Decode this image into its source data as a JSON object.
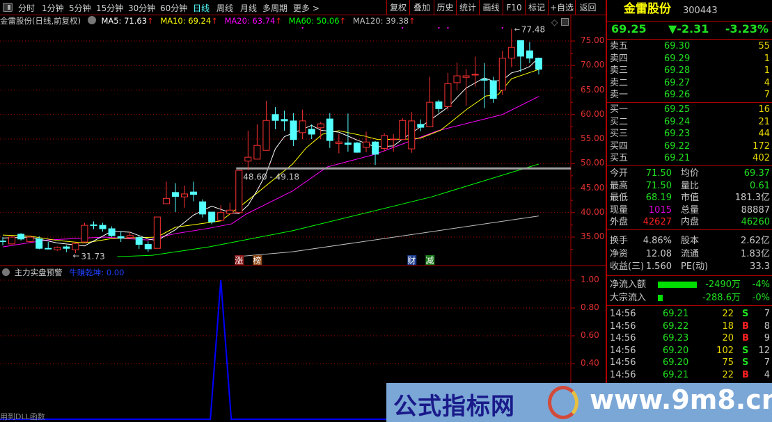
{
  "toolbar": {
    "periods": [
      "分时",
      "1分钟",
      "5分钟",
      "15分钟",
      "30分钟",
      "60分钟",
      "日线",
      "周线",
      "月线",
      "多周期",
      "更多 >"
    ],
    "active": "日线",
    "buttons": [
      "复权",
      "叠加",
      "历史",
      "统计",
      "画线",
      "F10",
      "标记",
      "+自选",
      "返回"
    ]
  },
  "info": {
    "title": "金雷股份(日线,前复权)",
    "ma5": "MA5: 71.63",
    "ma10": "MA10: 69.24",
    "ma20": "MA20: 63.74",
    "ma60": "MA60: 50.06",
    "ma120": "MA120: 39.38",
    "arrow": "↑"
  },
  "colors": {
    "up": "#ff3232",
    "down": "#54ffff",
    "ma5": "#ffffff",
    "ma10": "#ffff00",
    "ma20": "#ff00ff",
    "ma60": "#00ff00",
    "ma120": "#c0c0c0",
    "grid": "#b00000",
    "indicator": "#0000ff"
  },
  "chart_data": {
    "type": "candlestick",
    "ylim": [
      30.5,
      78
    ],
    "yticks": [
      "75.00",
      "70.00",
      "65.00",
      "60.00",
      "55.00",
      "50.00",
      "45.00",
      "40.00",
      "35.00"
    ],
    "ohlc": [
      [
        34.2,
        35,
        33.3,
        34.1
      ],
      [
        33.6,
        35.2,
        33.5,
        35.0
      ],
      [
        35.6,
        35.8,
        34.3,
        34.6
      ],
      [
        34.1,
        35.3,
        33.9,
        35.0
      ],
      [
        34.6,
        35.2,
        32.5,
        32.7
      ],
      [
        32.7,
        34.0,
        32.5,
        32.6
      ],
      [
        32.4,
        33.1,
        32.2,
        32.9
      ],
      [
        33.0,
        33.3,
        31.9,
        32.7
      ],
      [
        32.4,
        33.9,
        31.73,
        33.7
      ],
      [
        34.0,
        37.9,
        33.8,
        37.4
      ],
      [
        37.5,
        38.2,
        36.6,
        37.4
      ],
      [
        37.4,
        37.9,
        36.1,
        36.7
      ],
      [
        36.7,
        37.2,
        35.0,
        35.3
      ],
      [
        35.1,
        36.2,
        34.0,
        34.8
      ],
      [
        34.9,
        36.0,
        34.8,
        35.3
      ],
      [
        34.9,
        35.3,
        32.6,
        33.5
      ],
      [
        33.5,
        34.1,
        32.0,
        32.6
      ],
      [
        32.7,
        39.1,
        32.7,
        39.1
      ],
      [
        41.8,
        46.3,
        41.8,
        42.9
      ],
      [
        44.1,
        46.0,
        40.1,
        43.3
      ],
      [
        43.2,
        45.5,
        41.0,
        43.8
      ],
      [
        44.2,
        46.3,
        42.3,
        43.7
      ],
      [
        42.2,
        42.7,
        39.0,
        39.7
      ],
      [
        40.1,
        40.1,
        37.6,
        38.1
      ],
      [
        38.4,
        41.5,
        38.4,
        40.0
      ],
      [
        39.8,
        42.0,
        39.6,
        40.5
      ],
      [
        40.0,
        48.6,
        40.0,
        48.6
      ],
      [
        50.5,
        56.7,
        48.6,
        51.3
      ],
      [
        50.9,
        58.0,
        50.9,
        53.7
      ],
      [
        52.7,
        62.8,
        52.7,
        58.8
      ],
      [
        60.0,
        61.5,
        57.0,
        58.8
      ],
      [
        59.0,
        60.8,
        56.7,
        58.7
      ],
      [
        58.7,
        60.3,
        53.6,
        54.9
      ],
      [
        56.3,
        61.0,
        55.0,
        58.7
      ],
      [
        57.0,
        58.0,
        55.0,
        56.0
      ],
      [
        57.3,
        58.5,
        55.0,
        58.1
      ],
      [
        59.1,
        60.3,
        53.2,
        54.7
      ],
      [
        54.1,
        56.0,
        52.1,
        54.4
      ],
      [
        54.2,
        60.2,
        52.4,
        53.9
      ],
      [
        54.2,
        54.4,
        52.2,
        52.3
      ],
      [
        53.3,
        56.5,
        52.3,
        54.4
      ],
      [
        54.4,
        54.6,
        49.7,
        51.9
      ],
      [
        53.1,
        56.2,
        52.5,
        55.7
      ],
      [
        54.9,
        56.0,
        52.4,
        55.0
      ],
      [
        54.9,
        59.3,
        54.9,
        58.8
      ],
      [
        53.0,
        60.5,
        52.2,
        58.7
      ],
      [
        58.0,
        59.0,
        56.6,
        57.4
      ],
      [
        57.5,
        67.7,
        57.5,
        62.5
      ],
      [
        62.6,
        63.0,
        60.4,
        61.2
      ],
      [
        61.6,
        68.5,
        60.8,
        66.3
      ],
      [
        66.5,
        70.6,
        64.9,
        67.9
      ],
      [
        67.6,
        69.3,
        61.8,
        67.9
      ],
      [
        68.2,
        71.8,
        65.7,
        68.2
      ],
      [
        67.2,
        70.5,
        61.3,
        67.0
      ],
      [
        66.9,
        67.7,
        62.4,
        63.3
      ],
      [
        65.0,
        73.0,
        64.0,
        71.5
      ],
      [
        71.5,
        77.48,
        69.7,
        73.7
      ],
      [
        75.1,
        75.1,
        68.7,
        71.9
      ],
      [
        73.0,
        74.8,
        70.5,
        71.5
      ],
      [
        71.5,
        71.5,
        68.19,
        69.25
      ]
    ],
    "ma5": [
      [
        0,
        34.8
      ],
      [
        3,
        35.0
      ],
      [
        6,
        33.8
      ],
      [
        9,
        33.2
      ],
      [
        12,
        36.2
      ],
      [
        14,
        36.0
      ],
      [
        16,
        34.6
      ],
      [
        17,
        34.3
      ],
      [
        19,
        36.5
      ],
      [
        21,
        39.5
      ],
      [
        23,
        41.3
      ],
      [
        25,
        40.0
      ],
      [
        26,
        39.8
      ],
      [
        27,
        41.5
      ],
      [
        28,
        44.5
      ],
      [
        29,
        48
      ],
      [
        30,
        53
      ],
      [
        31,
        55.5
      ],
      [
        33,
        57.0
      ],
      [
        34,
        57.8
      ],
      [
        35,
        56.8
      ],
      [
        37,
        56.4
      ],
      [
        39,
        54.8
      ],
      [
        41,
        53.4
      ],
      [
        43,
        53.6
      ],
      [
        44,
        55.0
      ],
      [
        46,
        57.5
      ],
      [
        47,
        58.8
      ],
      [
        49,
        61.5
      ],
      [
        50,
        63.5
      ],
      [
        51,
        65.4
      ],
      [
        53,
        67.5
      ],
      [
        54,
        66.8
      ],
      [
        55,
        67.0
      ],
      [
        56,
        68.5
      ],
      [
        57,
        69.0
      ],
      [
        58,
        69.8
      ],
      [
        59,
        71.6
      ]
    ],
    "ma10": [
      [
        0,
        35.4
      ],
      [
        3,
        35.2
      ],
      [
        6,
        34.3
      ],
      [
        9,
        33.8
      ],
      [
        12,
        34.7
      ],
      [
        17,
        35.0
      ],
      [
        19,
        37.0
      ],
      [
        24,
        38.3
      ],
      [
        26.5,
        41.8
      ],
      [
        28,
        44
      ],
      [
        31.9,
        49.9
      ],
      [
        33.4,
        53.2
      ],
      [
        35.2,
        56
      ],
      [
        37,
        56.7
      ],
      [
        39.6,
        55.7
      ],
      [
        41.3,
        54.9
      ],
      [
        44.8,
        55
      ],
      [
        46,
        55.2
      ],
      [
        48.2,
        56.8
      ],
      [
        51.1,
        61.1
      ],
      [
        53.2,
        63.8
      ],
      [
        54.5,
        64
      ],
      [
        56,
        67.3
      ],
      [
        59,
        69.2
      ]
    ],
    "ma20": [
      [
        0,
        33.0
      ],
      [
        4.8,
        34.4
      ],
      [
        11.2,
        35.0
      ],
      [
        16,
        34.4
      ],
      [
        19,
        35.7
      ],
      [
        22.7,
        36.8
      ],
      [
        25.2,
        37.7
      ],
      [
        26.8,
        39.7
      ],
      [
        31.9,
        44.4
      ],
      [
        35.7,
        49.3
      ],
      [
        41,
        51.9
      ],
      [
        47.9,
        56.7
      ],
      [
        55,
        60
      ],
      [
        59,
        63.7
      ]
    ],
    "ma60": [
      [
        12.6,
        31.0
      ],
      [
        16.5,
        31.3
      ],
      [
        22.7,
        33.0
      ],
      [
        31.9,
        36.3
      ],
      [
        47.2,
        43.2
      ],
      [
        59,
        49.9
      ]
    ],
    "ma120": [
      [
        25.7,
        31.0
      ],
      [
        31.9,
        32.0
      ],
      [
        47.2,
        36.1
      ],
      [
        59,
        39.3
      ]
    ],
    "high_label": "77.48",
    "low_label": "31.73",
    "range_label": "48.60 - 49.18",
    "range_level": 49.0,
    "signal_dots": [
      33,
      44,
      48,
      49,
      55
    ],
    "events": [
      {
        "i": 26,
        "text": "涨",
        "bg": "#8b1a1a",
        "color": "#ffffff"
      },
      {
        "i": 28,
        "text": "榜",
        "bg": "#8b4513",
        "color": "#ffffff"
      },
      {
        "i": 45,
        "text": "财",
        "bg": "#1a3a8b",
        "color": "#ffffff"
      },
      {
        "i": 47,
        "text": "减",
        "bg": "#1a7a1a",
        "color": "#ffffff"
      }
    ],
    "indicator": {
      "name": "主力实盘预警",
      "series_label": "牛赚乾坤: 0.00",
      "ylim": [
        0,
        1
      ],
      "yticks": [
        "1.00",
        "0.80",
        "0.60",
        "0.40"
      ],
      "spike_index": 24,
      "footer": "用到DLL函数"
    }
  },
  "quote": {
    "name": "金雷股份",
    "code": "300443",
    "price": "69.25",
    "change": "▼-2.31",
    "pct": "-3.23%",
    "sell": [
      [
        "卖五",
        "69.30",
        "55"
      ],
      [
        "卖四",
        "69.29",
        "1"
      ],
      [
        "卖三",
        "69.28",
        "1"
      ],
      [
        "卖二",
        "69.27",
        "4"
      ],
      [
        "卖一",
        "69.26",
        "7"
      ]
    ],
    "buy": [
      [
        "买一",
        "69.25",
        "16"
      ],
      [
        "买二",
        "69.24",
        "21"
      ],
      [
        "买三",
        "69.23",
        "44"
      ],
      [
        "买四",
        "69.22",
        "172"
      ],
      [
        "买五",
        "69.21",
        "402"
      ]
    ],
    "stats": [
      [
        "今开",
        "71.50",
        "均价",
        "69.37",
        "green",
        "green"
      ],
      [
        "最高",
        "71.50",
        "量比",
        "0.61",
        "green",
        "green"
      ],
      [
        "最低",
        "68.19",
        "市值",
        "181.3亿",
        "green",
        "gray"
      ],
      [
        "现量",
        "1015",
        "总量",
        "88887",
        "mag",
        "gray"
      ],
      [
        "外盘",
        "42627",
        "内盘",
        "46260",
        "red",
        "green"
      ]
    ],
    "stats2": [
      [
        "换手",
        "4.86%",
        "股本",
        "2.62亿"
      ],
      [
        "净资",
        "12.08",
        "流通",
        "1.83亿"
      ],
      [
        "收益(三)",
        "1.560",
        "PE(动)",
        "33.3"
      ]
    ],
    "flow": [
      [
        "净流入额",
        "-2490万",
        "-4%",
        1.0
      ],
      [
        "大宗流入",
        "-288.6万",
        "-0%",
        0.1
      ]
    ],
    "ticks": [
      [
        "14:56",
        "69.21",
        "22",
        "S",
        "7"
      ],
      [
        "14:56",
        "69.22",
        "18",
        "B",
        "8"
      ],
      [
        "14:56",
        "69.23",
        "20",
        "B",
        "9"
      ],
      [
        "14:56",
        "69.20",
        "102",
        "S",
        "12"
      ],
      [
        "14:56",
        "69.20",
        "75",
        "S",
        "7"
      ],
      [
        "14:56",
        "69.21",
        "22",
        "B",
        "4"
      ]
    ]
  },
  "watermark": {
    "cn": "公式指标网",
    "url": "www.9m8.cn"
  }
}
